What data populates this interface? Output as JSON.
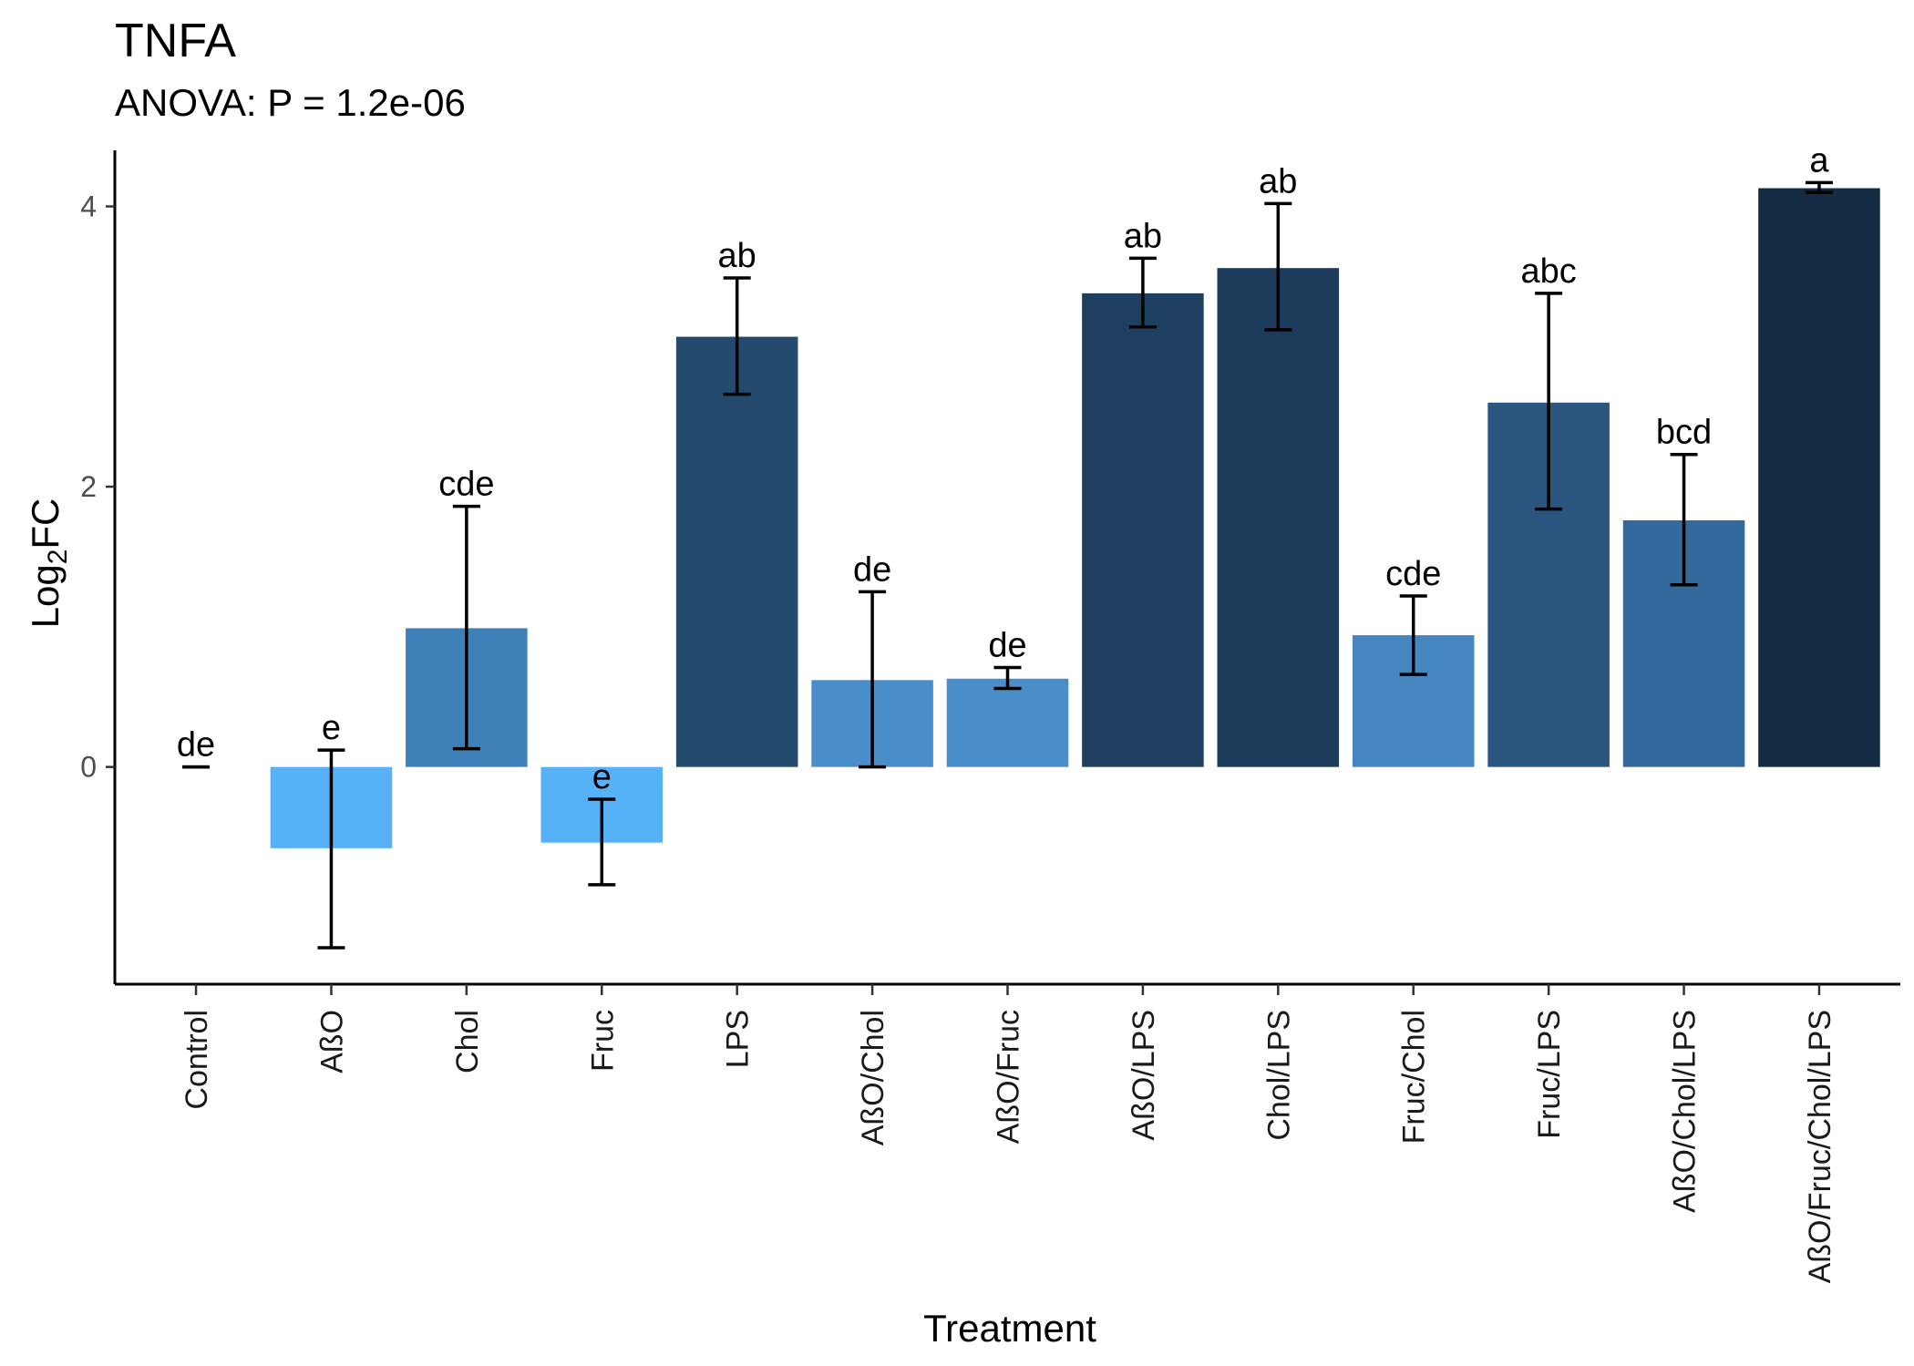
{
  "chart_data": {
    "type": "bar",
    "title": "TNFA",
    "subtitle": "ANOVA: P = 1.2e-06",
    "xlabel": "Treatment",
    "ylabel": {
      "base": "Log",
      "sub": "2",
      "rest": "FC"
    },
    "ylim": [
      -1.55,
      4.4
    ],
    "yticks": [
      "0",
      "2",
      "4"
    ],
    "grid": false,
    "legend": "none",
    "categories": [
      "Control",
      "AßO",
      "Chol",
      "Fruc",
      "LPS",
      "AßO/Chol",
      "AßO/Fruc",
      "AßO/LPS",
      "Chol/LPS",
      "Fruc/Chol",
      "Fruc/LPS",
      "AßO/Chol/LPS",
      "AßO/Fruc/Chol/LPS"
    ],
    "values": [
      0.0,
      -0.58,
      0.99,
      -0.54,
      3.07,
      0.62,
      0.63,
      3.38,
      3.56,
      0.94,
      2.6,
      1.76,
      4.13
    ],
    "error_low": [
      0.0,
      -1.29,
      0.13,
      -0.84,
      2.66,
      0.0,
      0.56,
      3.14,
      3.12,
      0.66,
      1.84,
      1.3,
      4.1
    ],
    "error_high": [
      0.0,
      0.12,
      1.86,
      -0.23,
      3.49,
      1.25,
      0.71,
      3.63,
      4.02,
      1.22,
      3.38,
      2.23,
      4.17
    ],
    "letters": [
      "de",
      "e",
      "cde",
      "e",
      "ab",
      "de",
      "de",
      "ab",
      "ab",
      "cde",
      "abc",
      "bcd",
      "a"
    ],
    "bar_colors": [
      "#2c4e74",
      "#56b1f7",
      "#3e80b8",
      "#56b1f7",
      "#244a6e",
      "#4a8ec9",
      "#4a8ec9",
      "#1f3f60",
      "#1c3a59",
      "#4586c0",
      "#29557e",
      "#336a9d",
      "#132b43"
    ]
  }
}
